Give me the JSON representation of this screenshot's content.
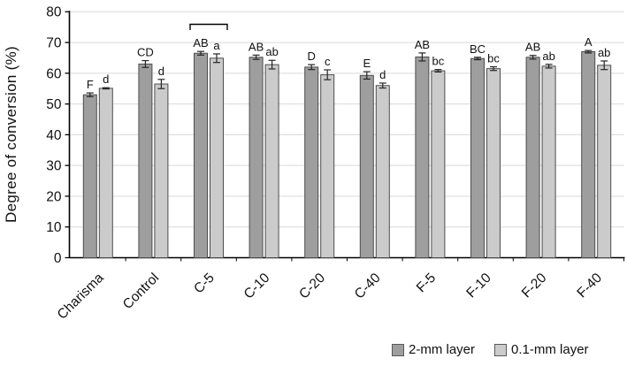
{
  "chart_data": {
    "type": "bar",
    "title": "",
    "xlabel": "",
    "ylabel": "Degree of conversion (%)",
    "ylim": [
      0,
      80
    ],
    "ytick_step": 10,
    "ytick_labels": [
      "0",
      "10",
      "20",
      "30",
      "40",
      "50",
      "60",
      "70",
      "80"
    ],
    "grid": "horizontal",
    "legend_position": "bottom-right",
    "categories": [
      "Charisma",
      "Control",
      "C-5",
      "C-10",
      "C-20",
      "C-40",
      "F-5",
      "F-10",
      "F-20",
      "F-40"
    ],
    "series": [
      {
        "name": "2-mm layer",
        "color": "#9e9e9e",
        "values": [
          53.0,
          63.0,
          66.5,
          65.2,
          62.0,
          59.3,
          65.3,
          64.8,
          65.2,
          67.0
        ],
        "errors": [
          0.6,
          1.1,
          0.6,
          0.7,
          0.8,
          1.2,
          1.3,
          0.4,
          0.6,
          0.4
        ],
        "letters": [
          "F",
          "CD",
          "AB",
          "AB",
          "D",
          "E",
          "AB",
          "BC",
          "AB",
          "A"
        ]
      },
      {
        "name": "0.1-mm layer",
        "color": "#cbcbcb",
        "values": [
          55.1,
          56.5,
          64.9,
          62.8,
          59.5,
          56.0,
          60.8,
          61.5,
          62.3,
          62.6
        ],
        "errors": [
          0.2,
          1.5,
          1.4,
          1.4,
          1.6,
          0.8,
          0.4,
          0.6,
          0.6,
          1.4
        ],
        "letters": [
          "d",
          "d",
          "a",
          "ab",
          "c",
          "d",
          "bc",
          "bc",
          "ab",
          "ab"
        ]
      }
    ],
    "annotations": [
      {
        "type": "bracket",
        "category_index": 2,
        "spans": "both-series"
      }
    ],
    "style_colors": {
      "bar_border": "#4d4d4d",
      "gridline": "#d9d9d9",
      "axis": "#000000",
      "error_bar": "#262626",
      "text": "#111111"
    }
  }
}
